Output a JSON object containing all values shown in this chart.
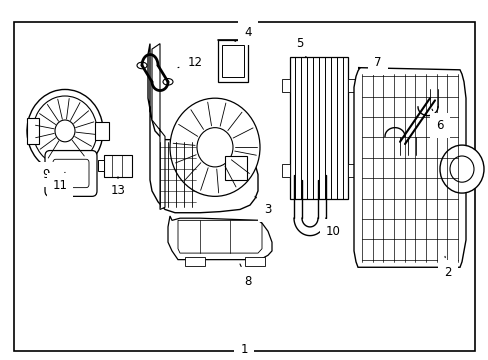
{
  "background_color": "#ffffff",
  "border_color": "#000000",
  "line_color": "#000000",
  "text_color": "#000000",
  "label_fontsize": 8.5,
  "fig_width": 4.89,
  "fig_height": 3.6,
  "dpi": 100
}
